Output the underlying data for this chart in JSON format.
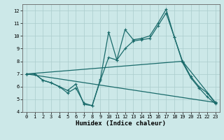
{
  "xlabel": "Humidex (Indice chaleur)",
  "xlim": [
    -0.5,
    23.5
  ],
  "ylim": [
    4,
    12.5
  ],
  "yticks": [
    4,
    5,
    6,
    7,
    8,
    9,
    10,
    11,
    12
  ],
  "xticks": [
    0,
    1,
    2,
    3,
    4,
    5,
    6,
    7,
    8,
    9,
    10,
    11,
    12,
    13,
    14,
    15,
    16,
    17,
    18,
    19,
    20,
    21,
    22,
    23
  ],
  "background_color": "#cce8e8",
  "grid_color": "#aacccc",
  "line_color": "#1a6b6b",
  "line1_x": [
    0,
    1,
    2,
    3,
    4,
    5,
    6,
    7,
    8,
    9,
    10,
    11,
    12,
    13,
    14,
    15,
    16,
    17,
    18,
    19,
    20,
    21,
    22,
    23
  ],
  "line1_y": [
    7.0,
    7.0,
    6.5,
    6.3,
    6.0,
    5.7,
    6.2,
    4.6,
    4.5,
    6.6,
    10.3,
    8.1,
    10.5,
    9.7,
    9.8,
    10.0,
    11.0,
    12.1,
    9.9,
    8.0,
    6.8,
    6.0,
    5.5,
    4.7
  ],
  "line2_x": [
    0,
    1,
    2,
    3,
    4,
    5,
    6,
    7,
    8,
    9,
    10,
    11,
    12,
    13,
    14,
    15,
    16,
    17,
    18,
    19,
    20,
    21,
    22,
    23
  ],
  "line2_y": [
    7.0,
    7.0,
    6.5,
    6.3,
    6.0,
    5.5,
    5.9,
    4.7,
    4.5,
    6.5,
    8.3,
    8.1,
    9.0,
    9.6,
    9.7,
    9.8,
    10.8,
    11.8,
    9.9,
    7.9,
    6.7,
    5.9,
    5.2,
    4.65
  ],
  "line3_x": [
    0,
    19,
    23
  ],
  "line3_y": [
    7.0,
    8.0,
    4.75
  ],
  "line4_x": [
    0,
    23
  ],
  "line4_y": [
    7.0,
    4.75
  ]
}
